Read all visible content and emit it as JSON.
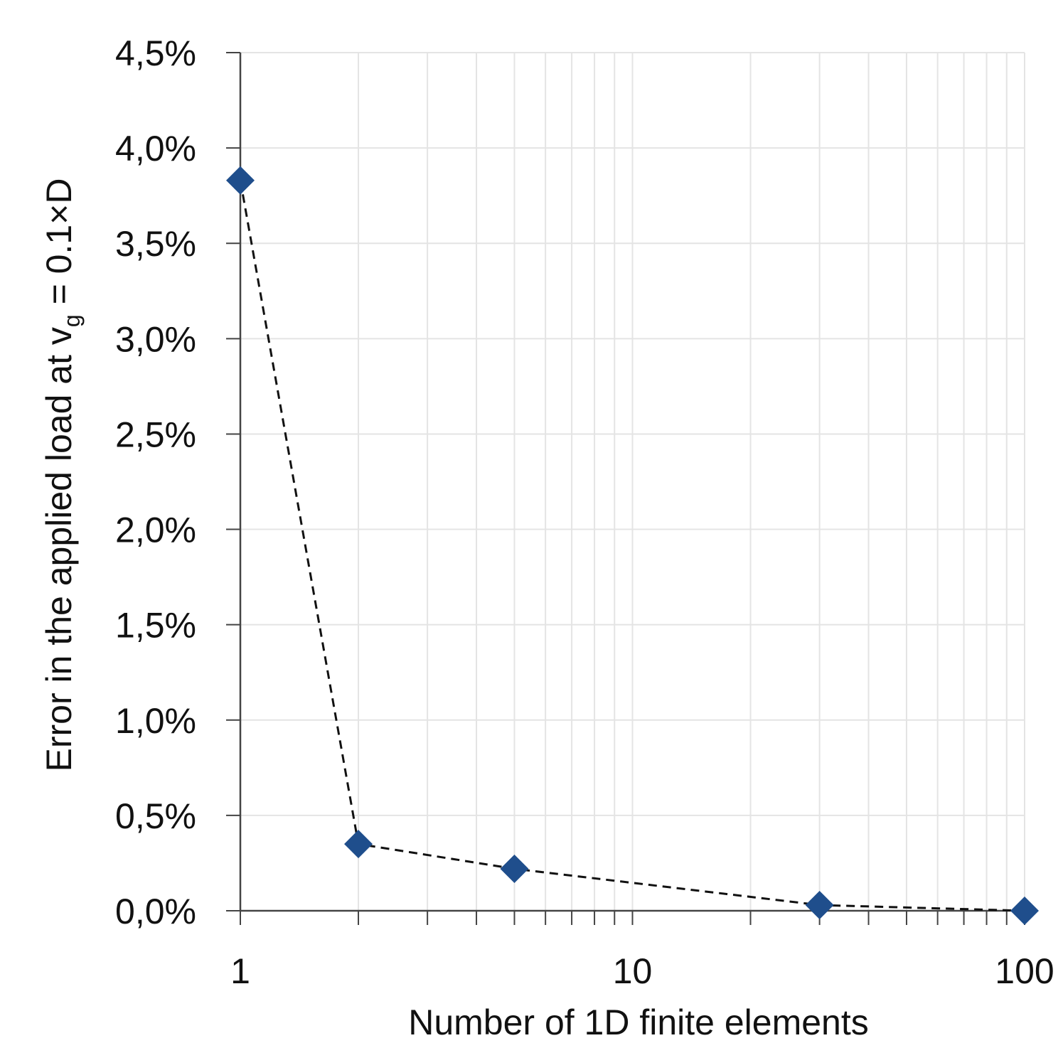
{
  "chart_data": {
    "type": "scatter",
    "title": "",
    "xlabel": "Number of 1D finite elements",
    "ylabel": {
      "prefix": "Error in the applied load at v",
      "subscript": "g",
      "suffix": " = 0.1×D"
    },
    "x_scale": "log",
    "xlim": [
      1,
      100
    ],
    "ylim": [
      0,
      0.045
    ],
    "x_ticks": [
      1,
      10,
      100
    ],
    "x_tick_labels": [
      "1",
      "10",
      "100"
    ],
    "y_ticks": [
      0,
      0.005,
      0.01,
      0.015,
      0.02,
      0.025,
      0.03,
      0.035,
      0.04,
      0.045
    ],
    "y_tick_labels": [
      "0,0%",
      "0,5%",
      "1,0%",
      "1,5%",
      "2,0%",
      "2,5%",
      "3,0%",
      "3,5%",
      "4,0%",
      "4,5%"
    ],
    "grid": true,
    "series": [
      {
        "x": [
          1,
          2,
          5,
          30,
          100
        ],
        "y": [
          0.0383,
          0.0035,
          0.0022,
          0.0003,
          0.0
        ]
      }
    ],
    "colors": {
      "marker": "#1f4e8c",
      "line": "#111111",
      "grid": "#e4e4e4",
      "axis": "#444444"
    },
    "marker": "diamond",
    "line_style": "dashed"
  }
}
